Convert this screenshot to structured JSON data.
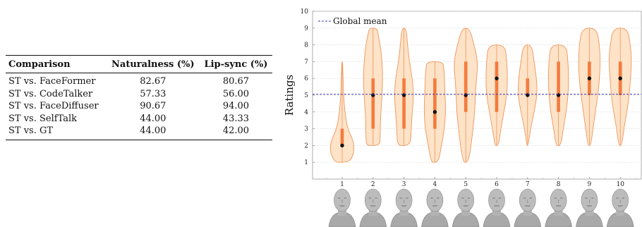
{
  "table": {
    "headers": [
      "Comparison",
      "Naturalness (%)",
      "Lip-sync (%)"
    ],
    "rows": [
      [
        "ST vs. FaceFormer",
        "82.67",
        "80.67"
      ],
      [
        "ST vs. CodeTalker",
        "57.33",
        "56.00"
      ],
      [
        "ST vs. FaceDiffuser",
        "90.67",
        "94.00"
      ],
      [
        "ST vs. SelfTalk",
        "44.00",
        "43.33"
      ],
      [
        "ST vs. GT",
        "44.00",
        "42.00"
      ]
    ]
  },
  "chart_data": {
    "type": "violin",
    "ylabel": "Ratings",
    "ylim": [
      0,
      10
    ],
    "yticks": [
      1,
      2,
      3,
      4,
      5,
      6,
      7,
      8,
      9,
      10
    ],
    "categories": [
      "1",
      "2",
      "3",
      "4",
      "5",
      "6",
      "7",
      "8",
      "9",
      "10"
    ],
    "legend": {
      "position": "top-left",
      "entries": [
        "Global mean"
      ]
    },
    "global_mean": 5.05,
    "grid": "horizontal dotted",
    "colors": {
      "violin_fill": "#fde3c8",
      "violin_edge": "#f0955a",
      "iqr_bar": "#f47b3e",
      "median": "#111111",
      "mean_line": "#3a3ab0"
    },
    "violins": [
      {
        "min": 1,
        "max": 7,
        "q1": 2,
        "q3": 3,
        "median": 2,
        "shape": [
          [
            1,
            0.6
          ],
          [
            1.5,
            0.95
          ],
          [
            2,
            1.0
          ],
          [
            2.5,
            0.8
          ],
          [
            3,
            0.45
          ],
          [
            4,
            0.22
          ],
          [
            5,
            0.12
          ],
          [
            6,
            0.07
          ],
          [
            7,
            0.04
          ]
        ]
      },
      {
        "min": 2,
        "max": 9,
        "q1": 3,
        "q3": 6,
        "median": 5,
        "shape": [
          [
            2,
            0.55
          ],
          [
            2.5,
            0.6
          ],
          [
            3,
            0.6
          ],
          [
            4,
            0.65
          ],
          [
            5,
            0.75
          ],
          [
            6,
            0.8
          ],
          [
            7,
            0.75
          ],
          [
            8,
            0.6
          ],
          [
            8.7,
            0.4
          ],
          [
            9,
            0.3
          ]
        ]
      },
      {
        "min": 2,
        "max": 9,
        "q1": 3,
        "q3": 6,
        "median": 5,
        "shape": [
          [
            2,
            0.55
          ],
          [
            3,
            0.6
          ],
          [
            4,
            0.7
          ],
          [
            5,
            0.8
          ],
          [
            6,
            0.7
          ],
          [
            7,
            0.45
          ],
          [
            8,
            0.3
          ],
          [
            9,
            0.18
          ]
        ]
      },
      {
        "min": 1,
        "max": 7,
        "q1": 3,
        "q3": 6,
        "median": 4,
        "shape": [
          [
            1,
            0.3
          ],
          [
            2,
            0.55
          ],
          [
            3,
            0.8
          ],
          [
            4,
            0.9
          ],
          [
            5,
            0.85
          ],
          [
            6,
            0.8
          ],
          [
            6.6,
            0.75
          ],
          [
            7,
            0.65
          ]
        ]
      },
      {
        "min": 1,
        "max": 9,
        "q1": 4,
        "q3": 7,
        "median": 5,
        "shape": [
          [
            1,
            0.2
          ],
          [
            2,
            0.45
          ],
          [
            3,
            0.6
          ],
          [
            4,
            0.75
          ],
          [
            5,
            0.8
          ],
          [
            6,
            0.9
          ],
          [
            7,
            1.0
          ],
          [
            8,
            0.7
          ],
          [
            9,
            0.3
          ]
        ]
      },
      {
        "min": 2,
        "max": 8,
        "q1": 4,
        "q3": 7,
        "median": 6,
        "shape": [
          [
            2,
            0.15
          ],
          [
            3,
            0.35
          ],
          [
            4,
            0.6
          ],
          [
            5,
            0.85
          ],
          [
            6,
            0.9
          ],
          [
            7,
            0.85
          ],
          [
            8,
            0.7
          ]
        ]
      },
      {
        "min": 2,
        "max": 8,
        "q1": 5,
        "q3": 6,
        "median": 5,
        "shape": [
          [
            2,
            0.05
          ],
          [
            3,
            0.25
          ],
          [
            4,
            0.55
          ],
          [
            5,
            0.8
          ],
          [
            6,
            0.75
          ],
          [
            7,
            0.55
          ],
          [
            8,
            0.35
          ]
        ]
      },
      {
        "min": 2,
        "max": 8,
        "q1": 4,
        "q3": 7,
        "median": 5,
        "shape": [
          [
            2,
            0.2
          ],
          [
            3,
            0.4
          ],
          [
            4,
            0.65
          ],
          [
            5,
            0.8
          ],
          [
            6,
            0.85
          ],
          [
            7,
            0.8
          ],
          [
            8,
            0.65
          ]
        ]
      },
      {
        "min": 2,
        "max": 9,
        "q1": 5,
        "q3": 7,
        "median": 6,
        "shape": [
          [
            2,
            0.12
          ],
          [
            3,
            0.3
          ],
          [
            4,
            0.5
          ],
          [
            5,
            0.7
          ],
          [
            6,
            0.85
          ],
          [
            7,
            0.9
          ],
          [
            8,
            0.85
          ],
          [
            9,
            0.6
          ]
        ]
      },
      {
        "min": 2,
        "max": 9,
        "q1": 5,
        "q3": 7,
        "median": 6,
        "shape": [
          [
            2,
            0.12
          ],
          [
            3,
            0.3
          ],
          [
            4,
            0.55
          ],
          [
            5,
            0.75
          ],
          [
            6,
            0.85
          ],
          [
            7,
            0.95
          ],
          [
            8,
            0.85
          ],
          [
            9,
            0.6
          ]
        ]
      }
    ],
    "face_renders": [
      "head-render-1",
      "head-render-2",
      "head-render-3",
      "head-render-4",
      "head-render-5",
      "head-render-6",
      "head-render-7",
      "head-render-8",
      "head-render-9",
      "head-render-10"
    ]
  }
}
